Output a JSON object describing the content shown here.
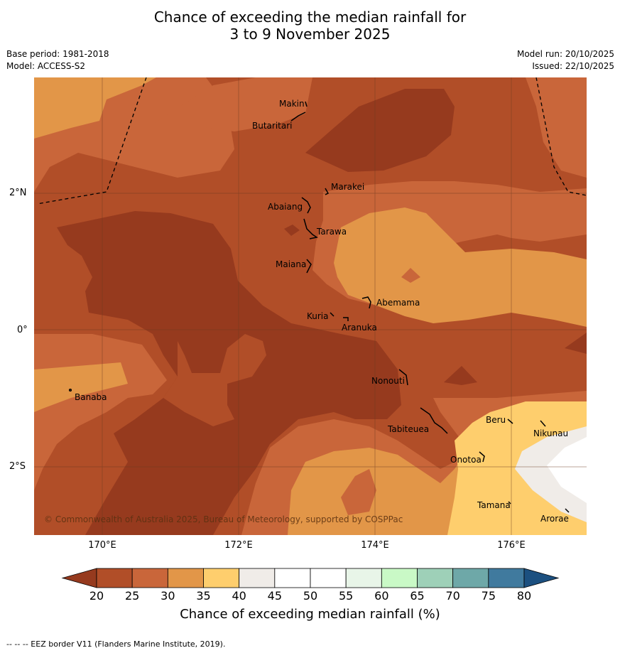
{
  "title_line1": "Chance of exceeding the median rainfall for",
  "title_line2": "3 to 9 November 2025",
  "meta_left": {
    "base_period": "Base period: 1981-2018",
    "model": "Model: ACCESS-S2"
  },
  "meta_right": {
    "model_run": "Model run: 20/10/2025",
    "issued": "Issued: 22/10/2025"
  },
  "lat_labels": [
    "2°N",
    "0°",
    "2°S"
  ],
  "lon_labels": [
    "170°E",
    "172°E",
    "174°E",
    "176°E"
  ],
  "islands": [
    "Makin",
    "Butaritari",
    "Marakei",
    "Abaiang",
    "Tarawa",
    "Maiana",
    "Abemama",
    "Kuria",
    "Aranuka",
    "Nonouti",
    "Banaba",
    "Tabiteuea",
    "Beru",
    "Nikunau",
    "Onotoa",
    "Tamana",
    "Arorae"
  ],
  "copyright": "© Commonwealth of Australia 2025, Bureau of Meteorology, supported by COSPPac",
  "colorbar": {
    "ticks": [
      "20",
      "25",
      "30",
      "35",
      "40",
      "45",
      "50",
      "55",
      "60",
      "65",
      "70",
      "75",
      "80"
    ],
    "colors": [
      "#963a1e",
      "#b14e28",
      "#c9663a",
      "#e29648",
      "#fece6d",
      "#f0ece8",
      "#ffffff",
      "#ffffff",
      "#e8f5e8",
      "#c9f9c6",
      "#9ed0b8",
      "#6ea8a8",
      "#407a9e",
      "#1c5080"
    ],
    "label": "Chance of exceeding median rainfall (%)"
  },
  "footnote": "-- -- -- EEZ border V11 (Flanders Marine Institute, 2019)."
}
